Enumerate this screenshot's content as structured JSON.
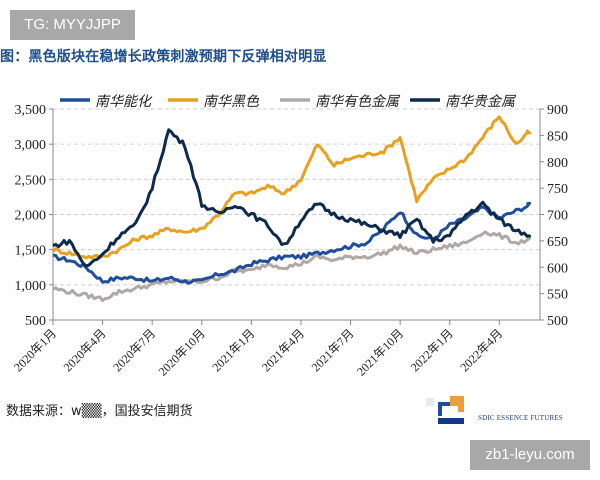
{
  "watermark_top": "TG: MYYJJPP",
  "title": "图：黑色版块在稳增长政策刺激预期下反弹相对明显",
  "source": "数据来源：w▒▒，国投安信期货",
  "logo": {
    "text": "SDIC ESSENCE FUTURES",
    "colors": [
      "#1f4e9c",
      "#e8a13a"
    ]
  },
  "watermark_bottom": "zb1-leyu.com",
  "chart_data": {
    "type": "line",
    "title": "图：黑色版块在稳增长政策刺激预期下反弹相对明显",
    "xlabel": "",
    "ylabel_left": "",
    "ylabel_right": "",
    "x_tick_labels": [
      "2020年1月",
      "2020年4月",
      "2020年7月",
      "2020年10月",
      "2021年1月",
      "2021年4月",
      "2021年7月",
      "2021年10月",
      "2022年1月",
      "2022年4月"
    ],
    "x": [
      "2020-01",
      "2020-02",
      "2020-03",
      "2020-04",
      "2020-05",
      "2020-06",
      "2020-07",
      "2020-08",
      "2020-09",
      "2020-10",
      "2020-11",
      "2020-12",
      "2021-01",
      "2021-02",
      "2021-03",
      "2021-04",
      "2021-05",
      "2021-06",
      "2021-07",
      "2021-08",
      "2021-09",
      "2021-10",
      "2021-11",
      "2021-12",
      "2022-01",
      "2022-02",
      "2022-03",
      "2022-04",
      "2022-05",
      "2022-06"
    ],
    "y_left": {
      "ticks": [
        "500",
        "1,000",
        "1,500",
        "2,000",
        "2,500",
        "3,000",
        "3,500"
      ],
      "range": [
        500,
        3500
      ]
    },
    "y_right": {
      "ticks": [
        "500",
        "550",
        "600",
        "650",
        "700",
        "750",
        "800",
        "850",
        "900"
      ],
      "range": [
        500,
        900
      ]
    },
    "grid": "horizontal dashed",
    "legend_position": "top",
    "series": [
      {
        "name": "南华能化",
        "axis": "left",
        "color": "#1f4e9c",
        "values": [
          1400,
          1350,
          1250,
          1050,
          1100,
          1100,
          1050,
          1100,
          1050,
          1050,
          1150,
          1200,
          1300,
          1350,
          1400,
          1400,
          1450,
          1500,
          1550,
          1600,
          1800,
          2050,
          1700,
          1650,
          1850,
          1950,
          2100,
          1950,
          2050,
          2150
        ]
      },
      {
        "name": "南华黑色",
        "axis": "left",
        "color": "#e8a11f",
        "values": [
          1500,
          1450,
          1400,
          1400,
          1500,
          1650,
          1700,
          1800,
          1750,
          1800,
          2000,
          2300,
          2300,
          2400,
          2300,
          2500,
          3000,
          2700,
          2800,
          2850,
          2900,
          3100,
          2200,
          2500,
          2650,
          2800,
          3100,
          3400,
          3000,
          3200
        ]
      },
      {
        "name": "南华有色金属",
        "axis": "left",
        "color": "#b0a8a4",
        "values": [
          950,
          900,
          850,
          800,
          900,
          950,
          1000,
          1050,
          1050,
          1050,
          1100,
          1200,
          1200,
          1300,
          1250,
          1300,
          1400,
          1350,
          1400,
          1400,
          1450,
          1550,
          1450,
          1500,
          1550,
          1600,
          1750,
          1700,
          1600,
          1650
        ]
      },
      {
        "name": "南华贵金属",
        "axis": "right",
        "color": "#0d2a4a",
        "values": [
          640,
          650,
          600,
          625,
          660,
          680,
          750,
          860,
          830,
          720,
          700,
          720,
          700,
          680,
          640,
          690,
          720,
          700,
          690,
          680,
          670,
          660,
          690,
          650,
          660,
          700,
          720,
          690,
          670,
          660
        ]
      }
    ]
  }
}
